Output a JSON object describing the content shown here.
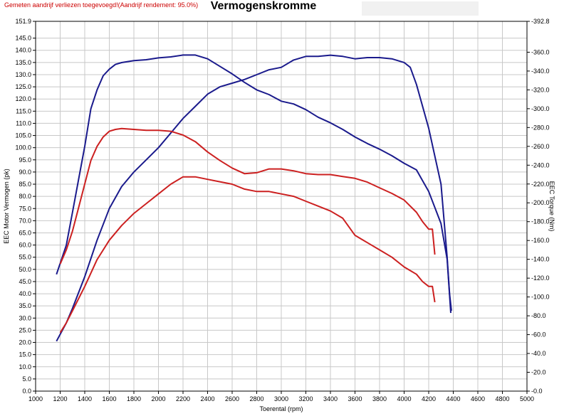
{
  "header": {
    "note": "Gemeten aandrijf verliezen toegevoegd!(Aandrijf rendement: 95.0%)",
    "title": "Vermogenskromme"
  },
  "chart_data": {
    "type": "line",
    "title": "Vermogenskromme",
    "xlabel": "Toerental (rpm)",
    "ylabel_left": "EEC Motor Vermogen (pk)",
    "ylabel_right": "EEC Torque (Nm)",
    "xlim": [
      1000,
      5000
    ],
    "ylim_left": [
      0,
      151.9
    ],
    "ylim_right": [
      0,
      392.8
    ],
    "grid": true,
    "x_ticks": [
      "1000",
      "1200",
      "1400",
      "1600",
      "1800",
      "2000",
      "2200",
      "2400",
      "2600",
      "2800",
      "3000",
      "3200",
      "3400",
      "3600",
      "3800",
      "4000",
      "4200",
      "4400",
      "4600",
      "4800",
      "5000"
    ],
    "y_left_ticks": [
      "0.0",
      "5.0",
      "10.0",
      "15.0",
      "20.0",
      "25.0",
      "30.0",
      "35.0",
      "40.0",
      "45.0",
      "50.0",
      "55.0",
      "60.0",
      "65.0",
      "70.0",
      "75.0",
      "80.0",
      "85.0",
      "90.0",
      "95.0",
      "100.0",
      "105.0",
      "110.0",
      "115.0",
      "120.0",
      "125.0",
      "130.0",
      "135.0",
      "140.0",
      "145.0",
      "151.9"
    ],
    "y_right_ticks": [
      "0.0",
      "20.0",
      "40.0",
      "60.0",
      "80.0",
      "100.0",
      "120.0",
      "140.0",
      "160.0",
      "180.0",
      "200.0",
      "220.0",
      "240.0",
      "260.0",
      "280.0",
      "300.0",
      "320.0",
      "340.0",
      "360.0",
      "392.8"
    ],
    "series": [
      {
        "color": "#1a1a8c",
        "axis": "right",
        "points": [
          [
            1170,
            124
          ],
          [
            1250,
            155
          ],
          [
            1300,
            190
          ],
          [
            1350,
            225
          ],
          [
            1400,
            260
          ],
          [
            1450,
            300
          ],
          [
            1500,
            320
          ],
          [
            1550,
            335
          ],
          [
            1600,
            342
          ],
          [
            1650,
            347
          ],
          [
            1700,
            349
          ],
          [
            1800,
            351
          ],
          [
            1900,
            352
          ],
          [
            2000,
            354
          ],
          [
            2100,
            355
          ],
          [
            2200,
            357
          ],
          [
            2300,
            357
          ],
          [
            2400,
            353
          ],
          [
            2500,
            345
          ],
          [
            2600,
            337
          ],
          [
            2700,
            328
          ],
          [
            2800,
            320
          ],
          [
            2900,
            315
          ],
          [
            3000,
            308
          ],
          [
            3100,
            305
          ],
          [
            3200,
            299
          ],
          [
            3300,
            291
          ],
          [
            3400,
            285
          ],
          [
            3500,
            278
          ],
          [
            3600,
            270
          ],
          [
            3700,
            263
          ],
          [
            3800,
            257
          ],
          [
            3900,
            250
          ],
          [
            4000,
            242
          ],
          [
            4100,
            235
          ],
          [
            4200,
            212
          ],
          [
            4300,
            178
          ],
          [
            4350,
            140
          ],
          [
            4380,
            83
          ]
        ]
      },
      {
        "color": "#1a1a8c",
        "axis": "left",
        "points": [
          [
            1170,
            20.5
          ],
          [
            1250,
            28
          ],
          [
            1300,
            34
          ],
          [
            1400,
            47
          ],
          [
            1500,
            62
          ],
          [
            1600,
            75
          ],
          [
            1700,
            84
          ],
          [
            1800,
            90
          ],
          [
            1900,
            95
          ],
          [
            2000,
            100
          ],
          [
            2100,
            106
          ],
          [
            2200,
            112
          ],
          [
            2300,
            117
          ],
          [
            2400,
            122
          ],
          [
            2500,
            125
          ],
          [
            2600,
            126.5
          ],
          [
            2700,
            128
          ],
          [
            2800,
            130
          ],
          [
            2900,
            132
          ],
          [
            3000,
            133
          ],
          [
            3100,
            136
          ],
          [
            3200,
            137.5
          ],
          [
            3300,
            137.5
          ],
          [
            3400,
            138
          ],
          [
            3500,
            137.5
          ],
          [
            3600,
            136.5
          ],
          [
            3700,
            137
          ],
          [
            3800,
            137
          ],
          [
            3900,
            136.5
          ],
          [
            4000,
            135
          ],
          [
            4050,
            133
          ],
          [
            4100,
            126
          ],
          [
            4200,
            108
          ],
          [
            4300,
            85
          ],
          [
            4350,
            55
          ],
          [
            4370,
            40
          ],
          [
            4385,
            33
          ]
        ]
      },
      {
        "color": "#cc2020",
        "axis": "right",
        "points": [
          [
            1200,
            135
          ],
          [
            1250,
            150
          ],
          [
            1300,
            170
          ],
          [
            1350,
            195
          ],
          [
            1400,
            220
          ],
          [
            1450,
            245
          ],
          [
            1500,
            260
          ],
          [
            1550,
            270
          ],
          [
            1600,
            276
          ],
          [
            1650,
            278
          ],
          [
            1700,
            279
          ],
          [
            1800,
            278
          ],
          [
            1900,
            277
          ],
          [
            2000,
            277
          ],
          [
            2100,
            276
          ],
          [
            2200,
            272
          ],
          [
            2300,
            265
          ],
          [
            2400,
            254
          ],
          [
            2500,
            245
          ],
          [
            2600,
            237
          ],
          [
            2700,
            231
          ],
          [
            2800,
            232
          ],
          [
            2900,
            236
          ],
          [
            3000,
            236
          ],
          [
            3100,
            234
          ],
          [
            3200,
            231
          ],
          [
            3300,
            230
          ],
          [
            3400,
            230
          ],
          [
            3500,
            228
          ],
          [
            3600,
            226
          ],
          [
            3700,
            222
          ],
          [
            3800,
            216
          ],
          [
            3900,
            210
          ],
          [
            4000,
            203
          ],
          [
            4100,
            190
          ],
          [
            4150,
            180
          ],
          [
            4200,
            172
          ],
          [
            4230,
            172
          ],
          [
            4250,
            145
          ]
        ]
      },
      {
        "color": "#cc2020",
        "axis": "left",
        "points": [
          [
            1200,
            24
          ],
          [
            1250,
            28
          ],
          [
            1300,
            33
          ],
          [
            1400,
            43
          ],
          [
            1500,
            54
          ],
          [
            1600,
            62
          ],
          [
            1700,
            68
          ],
          [
            1800,
            73
          ],
          [
            1900,
            77
          ],
          [
            2000,
            81
          ],
          [
            2100,
            85
          ],
          [
            2200,
            88
          ],
          [
            2300,
            88
          ],
          [
            2400,
            87
          ],
          [
            2500,
            86
          ],
          [
            2600,
            85
          ],
          [
            2700,
            83
          ],
          [
            2800,
            82
          ],
          [
            2900,
            82
          ],
          [
            3000,
            81
          ],
          [
            3100,
            80
          ],
          [
            3200,
            78
          ],
          [
            3300,
            76
          ],
          [
            3400,
            74
          ],
          [
            3500,
            71
          ],
          [
            3600,
            64
          ],
          [
            3700,
            61
          ],
          [
            3800,
            58
          ],
          [
            3900,
            55
          ],
          [
            4000,
            51
          ],
          [
            4100,
            48
          ],
          [
            4150,
            45
          ],
          [
            4200,
            43
          ],
          [
            4230,
            43
          ],
          [
            4250,
            36.5
          ]
        ]
      }
    ]
  }
}
